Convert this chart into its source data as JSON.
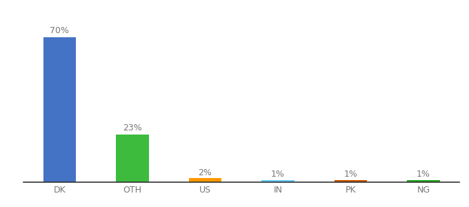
{
  "categories": [
    "DK",
    "OTH",
    "US",
    "IN",
    "PK",
    "NG"
  ],
  "values": [
    70,
    23,
    2,
    1,
    1,
    1
  ],
  "labels": [
    "70%",
    "23%",
    "2%",
    "1%",
    "1%",
    "1%"
  ],
  "bar_colors": [
    "#4472c4",
    "#3dbb3d",
    "#ff9900",
    "#66ccff",
    "#cc5500",
    "#22aa22"
  ],
  "label_fontsize": 9,
  "tick_fontsize": 9,
  "background_color": "#ffffff",
  "ylim": [
    0,
    80
  ],
  "bar_width": 0.45
}
